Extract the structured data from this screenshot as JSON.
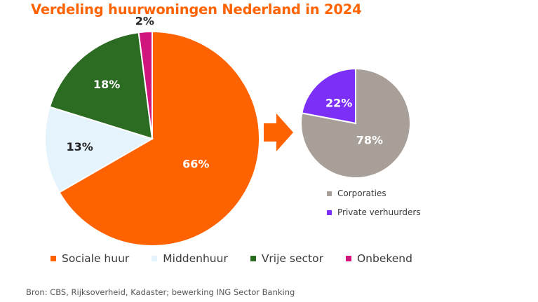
{
  "chart_data": [
    {
      "type": "pie",
      "title": "Verdeling huurwoningen Nederland in 2024",
      "slices": [
        {
          "label": "Sociale huur",
          "value": 66,
          "value_label": "66%",
          "color": "#ff6200"
        },
        {
          "label": "Middenhuur",
          "value": 13,
          "value_label": "13%",
          "color": "#e4f3fc"
        },
        {
          "label": "Vrije sector",
          "value": 18,
          "value_label": "18%",
          "color": "#2c6b22"
        },
        {
          "label": "Onbekend",
          "value": 2,
          "value_label": "2%",
          "color": "#d1157c"
        }
      ],
      "legend_position": "bottom"
    },
    {
      "type": "pie",
      "subset_of": "Sociale huur",
      "slices": [
        {
          "label": "Corporaties",
          "value": 78,
          "value_label": "78%",
          "color": "#a89f98"
        },
        {
          "label": "Private verhuurders",
          "value": 22,
          "value_label": "22%",
          "color": "#7b2ff7"
        }
      ],
      "legend_position": "bottom"
    }
  ],
  "arrow_color": "#ff6200",
  "source": "Bron:  CBS, Rijksoverheid, Kadaster; bewerking ING Sector Banking"
}
